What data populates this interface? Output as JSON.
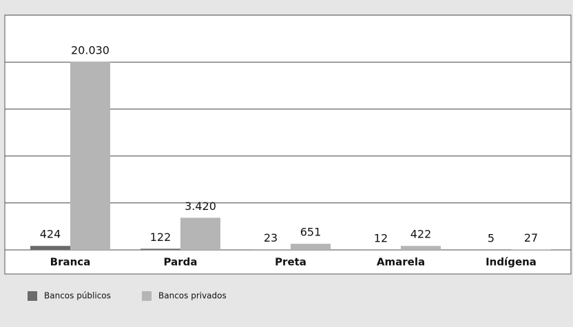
{
  "chart_data": {
    "type": "bar",
    "categories": [
      "Branca",
      "Parda",
      "Preta",
      "Amarela",
      "Indígena"
    ],
    "series": [
      {
        "name": "Bancos públicos",
        "color": "#6b6b6b",
        "values": [
          424,
          122,
          23,
          12,
          5
        ],
        "value_labels": [
          "424",
          "122",
          "23",
          "12",
          "5"
        ]
      },
      {
        "name": "Bancos privados",
        "color": "#b5b5b5",
        "values": [
          20030,
          3420,
          651,
          422,
          27
        ],
        "value_labels": [
          "20.030",
          "3.420",
          "651",
          "422",
          "27"
        ]
      }
    ],
    "ylim": [
      0,
      25000
    ],
    "yticks": [
      0,
      5000,
      10000,
      15000,
      20000,
      25000
    ],
    "grid": true
  }
}
